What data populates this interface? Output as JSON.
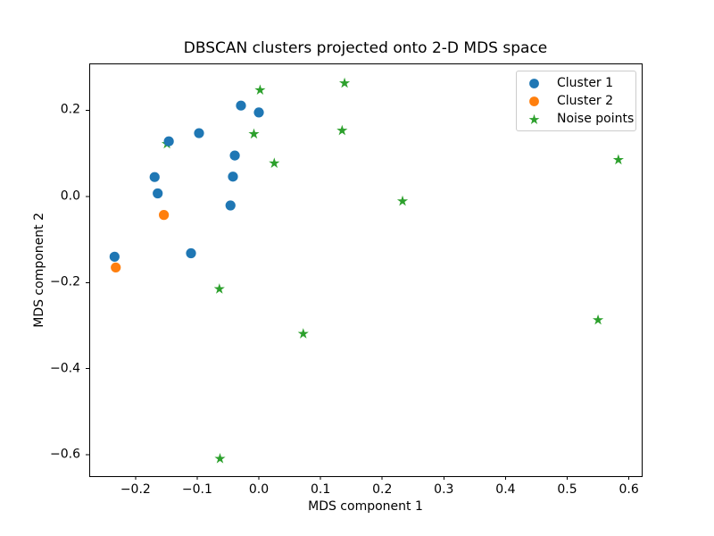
{
  "chart_data": {
    "type": "scatter",
    "title": "DBSCAN clusters projected onto 2-D MDS space",
    "xlabel": "MDS component 1",
    "ylabel": "MDS component 2",
    "xlim": [
      -0.275,
      0.6208
    ],
    "ylim": [
      -0.6496,
      0.3089
    ],
    "grid": false,
    "legend_position": "upper right",
    "background_color": "#ffffff",
    "axes_edge_color": "#000000",
    "legend_border_color": "#cccccc",
    "x_ticks": [
      {
        "value": -0.2,
        "label": "−0.2"
      },
      {
        "value": -0.1,
        "label": "−0.1"
      },
      {
        "value": 0.0,
        "label": "0.0"
      },
      {
        "value": 0.1,
        "label": "0.1"
      },
      {
        "value": 0.2,
        "label": "0.2"
      },
      {
        "value": 0.3,
        "label": "0.3"
      },
      {
        "value": 0.4,
        "label": "0.4"
      },
      {
        "value": 0.5,
        "label": "0.5"
      },
      {
        "value": 0.6,
        "label": "0.6"
      }
    ],
    "y_ticks": [
      {
        "value": 0.2,
        "label": "0.2"
      },
      {
        "value": 0.0,
        "label": "0.0"
      },
      {
        "value": -0.2,
        "label": "−0.2"
      },
      {
        "value": -0.4,
        "label": "−0.4"
      },
      {
        "value": -0.6,
        "label": "−0.6"
      }
    ],
    "series": [
      {
        "name": "Cluster 1",
        "marker": "circle",
        "color": "#1f77b4",
        "points": [
          [
            -0.029,
            0.211
          ],
          [
            0.0,
            0.195
          ],
          [
            -0.097,
            0.147
          ],
          [
            -0.146,
            0.128
          ],
          [
            -0.039,
            0.095
          ],
          [
            -0.042,
            0.046
          ],
          [
            -0.169,
            0.045
          ],
          [
            -0.164,
            0.007
          ],
          [
            -0.046,
            -0.021
          ],
          [
            -0.11,
            -0.132
          ],
          [
            -0.234,
            -0.14
          ]
        ]
      },
      {
        "name": "Cluster 2",
        "marker": "circle",
        "color": "#ff7f0e",
        "points": [
          [
            -0.154,
            -0.043
          ],
          [
            -0.232,
            -0.165
          ]
        ]
      },
      {
        "name": "Noise points",
        "marker": "star",
        "color": "#2ca02c",
        "points": [
          [
            0.002,
            0.247
          ],
          [
            0.139,
            0.263
          ],
          [
            -0.008,
            0.145
          ],
          [
            0.135,
            0.153
          ],
          [
            -0.149,
            0.122
          ],
          [
            0.025,
            0.077
          ],
          [
            0.233,
            -0.011
          ],
          [
            0.583,
            0.085
          ],
          [
            -0.064,
            -0.215
          ],
          [
            0.072,
            -0.319
          ],
          [
            0.55,
            -0.287
          ],
          [
            -0.063,
            -0.609
          ]
        ]
      }
    ]
  }
}
